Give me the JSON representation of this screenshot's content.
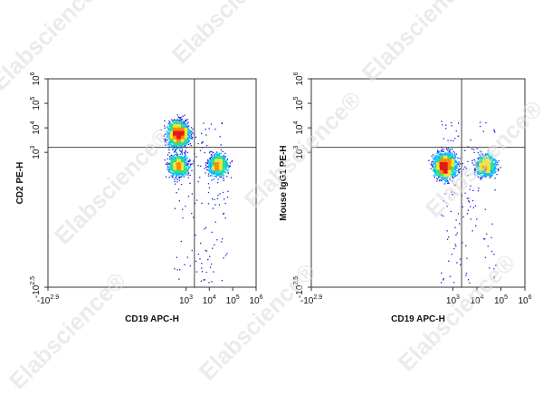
{
  "watermark": {
    "text": "Elabscience",
    "mark": "®"
  },
  "chart_data": [
    {
      "type": "scatter",
      "title": "",
      "xlabel": "CD19 APC-H",
      "ylabel": "CD2 PE-H",
      "x_scale": "biexponential",
      "y_scale": "biexponential",
      "x_ticks": [
        {
          "value": -794,
          "base": "-10",
          "exp": "2.9"
        },
        {
          "value": 1000,
          "base": "10",
          "exp": "3"
        },
        {
          "value": 10000,
          "base": "10",
          "exp": "4"
        },
        {
          "value": 100000,
          "base": "10",
          "exp": "5"
        },
        {
          "value": 1000000,
          "base": "10",
          "exp": "6"
        }
      ],
      "y_ticks": [
        {
          "value": -316,
          "base": "-10",
          "exp": "2.5"
        },
        {
          "value": 1000,
          "base": "10",
          "exp": "3"
        },
        {
          "value": 10000,
          "base": "10",
          "exp": "4"
        },
        {
          "value": 100000,
          "base": "10",
          "exp": "5"
        },
        {
          "value": 1000000,
          "base": "10",
          "exp": "6"
        }
      ],
      "quadrant_gates": {
        "x": 2300,
        "y": 1600
      },
      "populations": [
        {
          "x_center": 450,
          "y_center": 6000,
          "density": "high"
        },
        {
          "x_center": 450,
          "y_center": 300,
          "density": "medium"
        },
        {
          "x_center": 22000,
          "y_center": 300,
          "density": "medium"
        }
      ],
      "color_scale": [
        "#1a1adf",
        "#00b7ff",
        "#26e08c",
        "#f3e23a",
        "#ff8a00",
        "#e31a1a"
      ]
    },
    {
      "type": "scatter",
      "title": "",
      "xlabel": "CD19 APC-H",
      "ylabel": "Mouse IgG1 PE-H",
      "x_scale": "biexponential",
      "y_scale": "biexponential",
      "x_ticks": [
        {
          "value": -794,
          "base": "-10",
          "exp": "2.9"
        },
        {
          "value": 1000,
          "base": "10",
          "exp": "3"
        },
        {
          "value": 10000,
          "base": "10",
          "exp": "4"
        },
        {
          "value": 100000,
          "base": "10",
          "exp": "5"
        },
        {
          "value": 1000000,
          "base": "10",
          "exp": "6"
        }
      ],
      "y_ticks": [
        {
          "value": -316,
          "base": "-10",
          "exp": "2.5"
        },
        {
          "value": 1000,
          "base": "10",
          "exp": "3"
        },
        {
          "value": 10000,
          "base": "10",
          "exp": "4"
        },
        {
          "value": 100000,
          "base": "10",
          "exp": "5"
        },
        {
          "value": 1000000,
          "base": "10",
          "exp": "6"
        }
      ],
      "quadrant_gates": {
        "x": 2300,
        "y": 1600
      },
      "populations": [
        {
          "x_center": 450,
          "y_center": 300,
          "density": "high"
        },
        {
          "x_center": 22000,
          "y_center": 300,
          "density": "medium"
        }
      ],
      "color_scale": [
        "#1a1adf",
        "#00b7ff",
        "#26e08c",
        "#f3e23a",
        "#ff8a00",
        "#e31a1a"
      ]
    }
  ]
}
